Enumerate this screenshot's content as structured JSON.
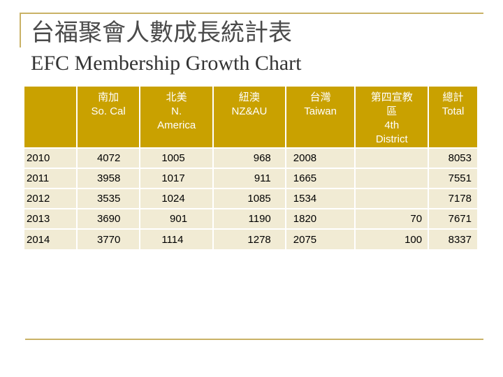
{
  "title_zh": "台福聚會人數成長統計表",
  "title_en": "EFC Membership Growth Chart",
  "table": {
    "headers": [
      {
        "lines": [
          ""
        ]
      },
      {
        "lines": [
          "南加",
          "So. Cal"
        ]
      },
      {
        "lines": [
          "北美",
          "N.",
          "America"
        ]
      },
      {
        "lines": [
          "紐澳",
          "NZ&AU"
        ]
      },
      {
        "lines": [
          "台灣",
          "Taiwan"
        ]
      },
      {
        "lines": [
          "第四宣教",
          "區",
          "4th",
          "District"
        ]
      },
      {
        "lines": [
          "總計",
          "Total"
        ]
      }
    ],
    "rows": [
      {
        "year": "2010",
        "so_cal": "4072",
        "n_america": "1005",
        "nz_au": "968",
        "taiwan": "2008",
        "fourth_district": "",
        "total": "8053"
      },
      {
        "year": "2011",
        "so_cal": "3958",
        "n_america": "1017",
        "nz_au": "911",
        "taiwan": "1665",
        "fourth_district": "",
        "total": "7551"
      },
      {
        "year": "2012",
        "so_cal": "3535",
        "n_america": "1024",
        "nz_au": "1085",
        "taiwan": "1534",
        "fourth_district": "",
        "total": "7178"
      },
      {
        "year": "2013",
        "so_cal": "3690",
        "n_america": "901",
        "nz_au": "1190",
        "taiwan": "1820",
        "fourth_district": "70",
        "total": "7671"
      },
      {
        "year": "2014",
        "so_cal": "3770",
        "n_america": "1114",
        "nz_au": "1278",
        "taiwan": "2075",
        "fourth_district": "100",
        "total": "8337"
      }
    ]
  },
  "colors": {
    "header_bg": "#c9a100",
    "cell_bg": "#f1ebd4",
    "frame_line": "#c9b266"
  }
}
